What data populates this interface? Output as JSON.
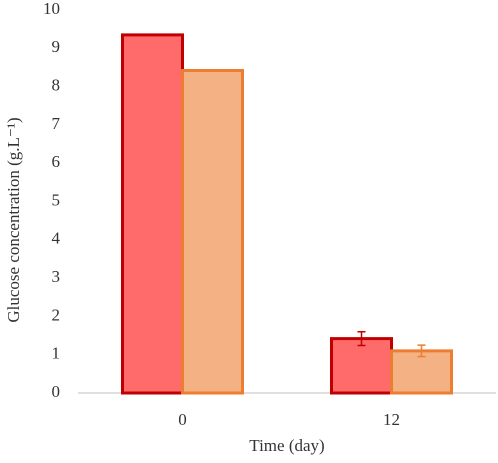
{
  "chart_data": {
    "type": "bar",
    "y_label": "Glucose concentration (g.L⁻¹)",
    "x_label": "Time (day)",
    "categories": [
      "0",
      "12"
    ],
    "series": [
      {
        "color": "#ff6b6b",
        "edgecolor": "#c00000",
        "values": [
          9.35,
          1.42
        ],
        "errors": [
          0,
          0.18
        ]
      },
      {
        "color": "#f4b183",
        "edgecolor": "#ed7d31",
        "values": [
          8.42,
          1.1
        ],
        "errors": [
          0,
          0.15
        ]
      }
    ],
    "ylim": [
      0,
      10
    ],
    "yticks": [
      0,
      1,
      2,
      3,
      4,
      5,
      6,
      7,
      8,
      9,
      10
    ],
    "grid": false
  }
}
